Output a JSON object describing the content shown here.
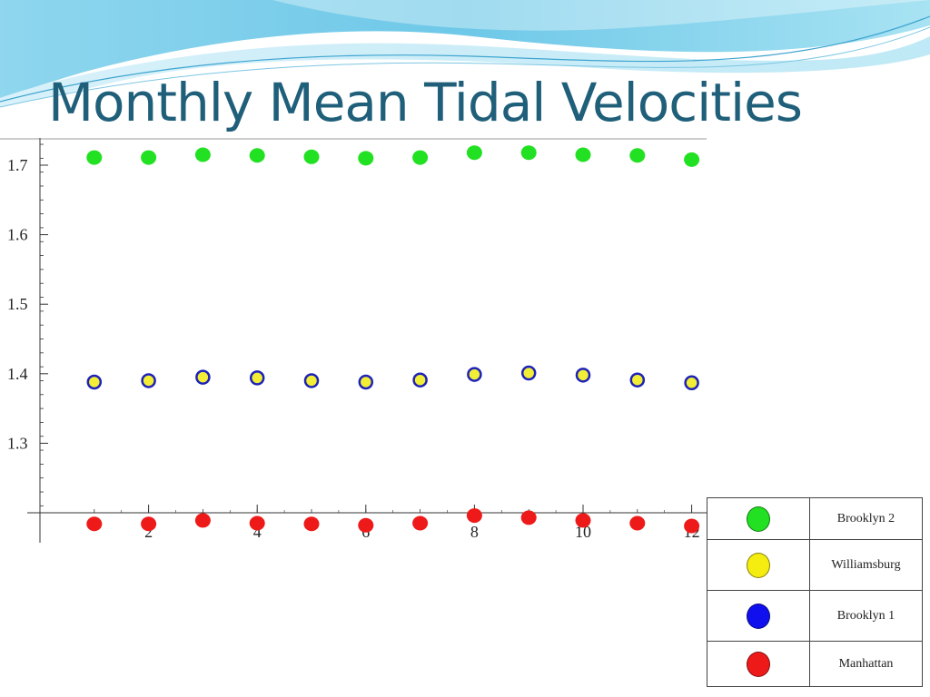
{
  "slide": {
    "title": "Monthly Mean Tidal Velocities"
  },
  "theme": {
    "title_color": "#1f5f7a",
    "background": "#ffffff"
  },
  "chart_data": {
    "type": "scatter",
    "title": "",
    "xlabel": "",
    "ylabel": "",
    "x": [
      1,
      2,
      3,
      4,
      5,
      6,
      7,
      8,
      9,
      10,
      11,
      12
    ],
    "x_ticks": [
      2,
      4,
      6,
      8,
      10,
      12
    ],
    "y_ticks": [
      1.3,
      1.4,
      1.5,
      1.6,
      1.7
    ],
    "xlim": [
      0.5,
      12.2
    ],
    "ylim": [
      1.2,
      1.74
    ],
    "series": [
      {
        "key": "brooklyn2",
        "color": "#22e022",
        "style": "filled",
        "values": [
          1.711,
          1.711,
          1.715,
          1.714,
          1.712,
          1.71,
          1.711,
          1.718,
          1.718,
          1.715,
          1.714,
          1.708
        ]
      },
      {
        "key": "bridge_pair",
        "color": "#f2ee35",
        "stroke": "#1d22b8",
        "style": "ringed",
        "values": [
          1.388,
          1.39,
          1.395,
          1.394,
          1.39,
          1.388,
          1.391,
          1.399,
          1.401,
          1.398,
          1.391,
          1.387
        ]
      },
      {
        "key": "manhattan",
        "color": "#ee1a1a",
        "style": "filled",
        "values": [
          1.184,
          1.184,
          1.189,
          1.185,
          1.184,
          1.182,
          1.185,
          1.196,
          1.193,
          1.189,
          1.185,
          1.181
        ]
      }
    ],
    "legend": [
      {
        "label": "Brooklyn 2",
        "color": "#22e022"
      },
      {
        "label": "Williamsburg",
        "color": "#f5ec10"
      },
      {
        "label": "Brooklyn 1",
        "color": "#1010ee"
      },
      {
        "label": "Manhattan",
        "color": "#ee1a1a"
      }
    ],
    "legend_position": "bottom-right",
    "grid": false
  }
}
